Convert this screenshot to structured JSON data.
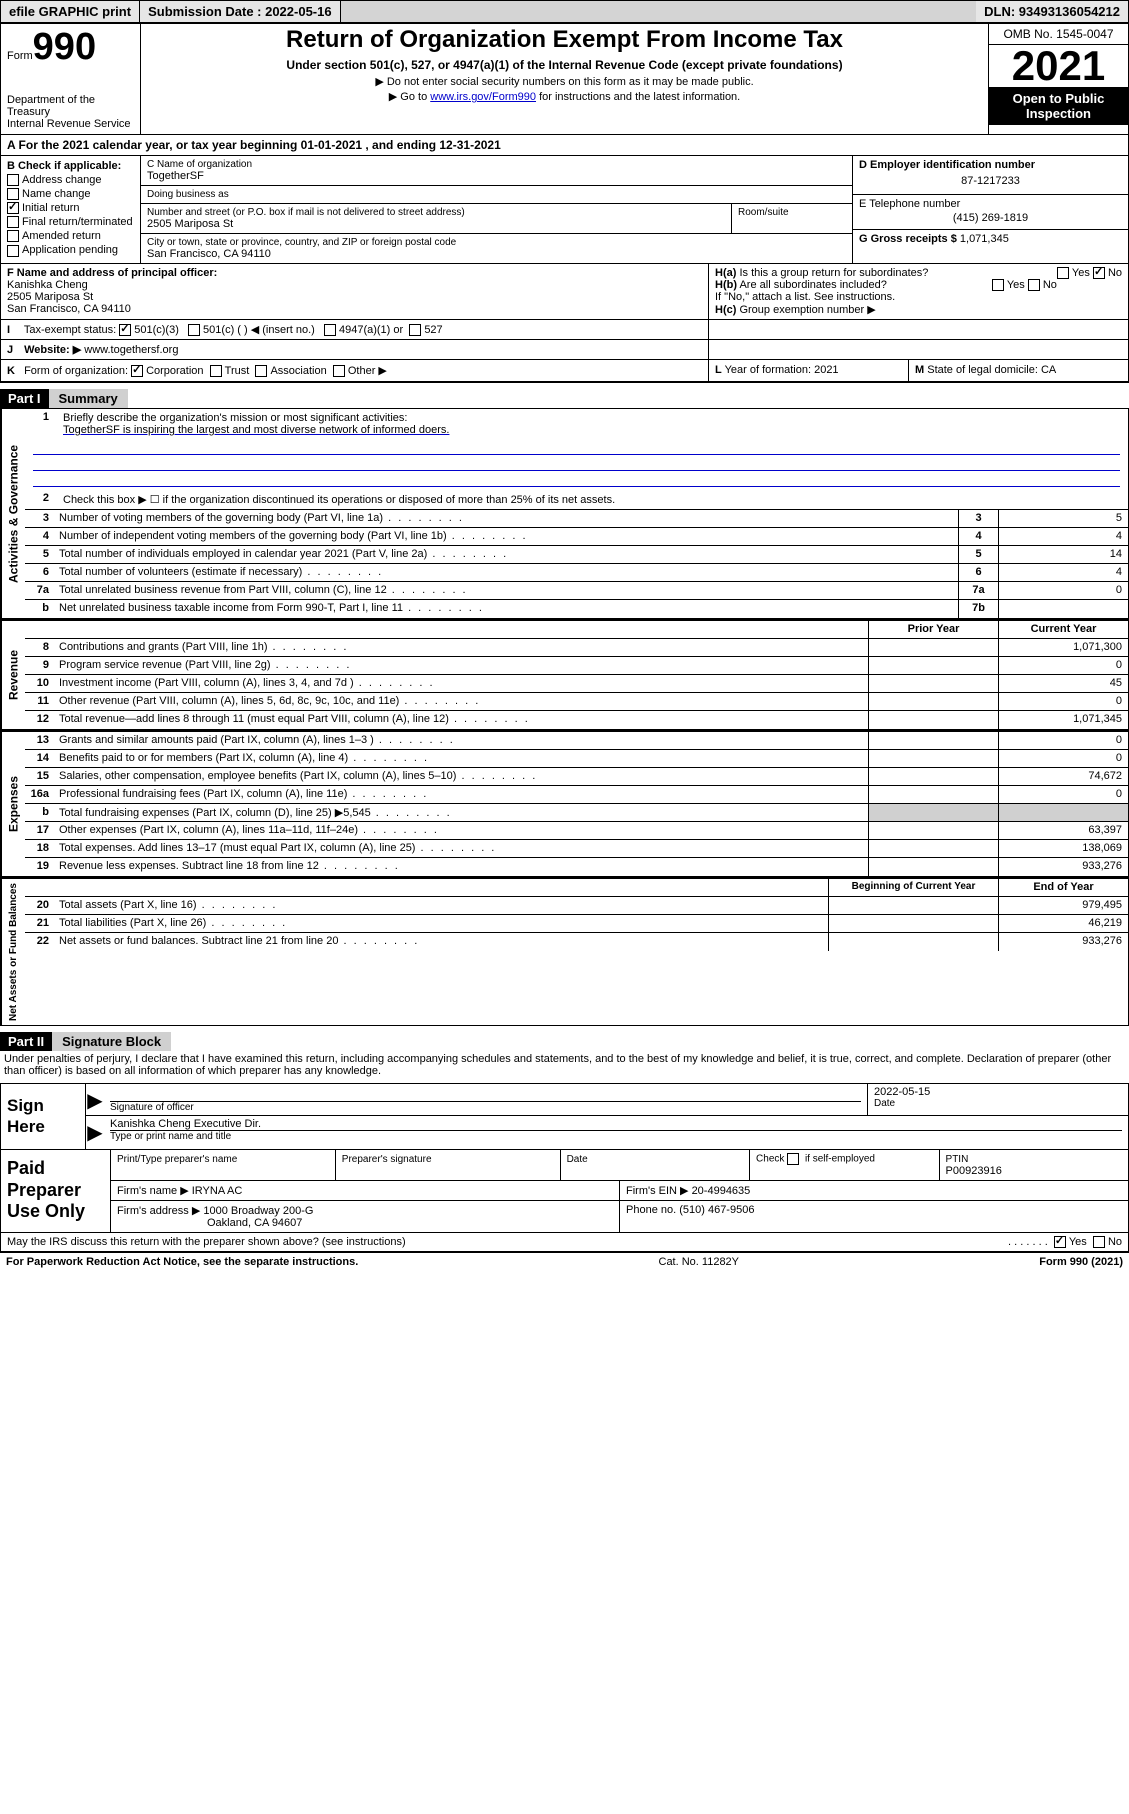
{
  "colors": {
    "bg": "#ffffff",
    "border": "#000000",
    "shade": "#d0d0d0",
    "link": "#0000cc",
    "topbar_bg": "#d4d4d4",
    "black": "#000000",
    "white": "#ffffff"
  },
  "topbar": {
    "btn1": "efile GRAPHIC print",
    "btn2": "Submission Date : 2022-05-16",
    "dln": "DLN: 93493136054212"
  },
  "header": {
    "form_word": "Form",
    "form_no": "990",
    "dept": "Department of the Treasury",
    "irs": "Internal Revenue Service",
    "title": "Return of Organization Exempt From Income Tax",
    "sub": "Under section 501(c), 527, or 4947(a)(1) of the Internal Revenue Code (except private foundations)",
    "note1": "▶ Do not enter social security numbers on this form as it may be made public.",
    "note2_pre": "▶ Go to ",
    "note2_link": "www.irs.gov/Form990",
    "note2_post": " for instructions and the latest information.",
    "omb": "OMB No. 1545-0047",
    "year": "2021",
    "open": "Open to Public Inspection"
  },
  "rowA": "A For the 2021 calendar year, or tax year beginning 01-01-2021   , and ending 12-31-2021",
  "B": {
    "label": "B Check if applicable:",
    "opts": [
      "Address change",
      "Name change",
      "Initial return",
      "Final return/terminated",
      "Amended return",
      "Application pending"
    ],
    "checked": [
      false,
      false,
      true,
      false,
      false,
      false
    ]
  },
  "C": {
    "name_cap": "C Name of organization",
    "name": "TogetherSF",
    "dba_cap": "Doing business as",
    "dba": "",
    "street_cap": "Number and street (or P.O. box if mail is not delivered to street address)",
    "street": "2505 Mariposa St",
    "suite_cap": "Room/suite",
    "suite": "",
    "city_cap": "City or town, state or province, country, and ZIP or foreign postal code",
    "city": "San Francisco, CA  94110"
  },
  "D": {
    "cap": "D Employer identification number",
    "val": "87-1217233"
  },
  "E": {
    "cap": "E Telephone number",
    "val": "(415) 269-1819"
  },
  "G": {
    "cap": "G Gross receipts $",
    "val": "1,071,345"
  },
  "F": {
    "cap": "F  Name and address of principal officer:",
    "name": "Kanishka Cheng",
    "street": "2505 Mariposa St",
    "city": "San Francisco, CA  94110"
  },
  "H": {
    "a_q": "Is this a group return for subordinates?",
    "a_yes": false,
    "a_no": true,
    "b_q": "Are all subordinates included?",
    "b_note": "If \"No,\" attach a list. See instructions.",
    "c_q": "Group exemption number ▶",
    "a_lbl": "H(a)",
    "b_lbl": "H(b)",
    "c_lbl": "H(c)"
  },
  "I": {
    "lbl": "I",
    "cap": "Tax-exempt status:",
    "c3": true,
    "c3_lbl": "501(c)(3)",
    "c_lbl": "501(c) (   ) ◀ (insert no.)",
    "a1_lbl": "4947(a)(1) or",
    "s527_lbl": "527"
  },
  "J": {
    "lbl": "J",
    "cap": "Website: ▶",
    "val": "www.togethersf.org"
  },
  "K": {
    "lbl": "K",
    "cap": "Form of organization:",
    "corp": true,
    "corp_lbl": "Corporation",
    "trust_lbl": "Trust",
    "assoc_lbl": "Association",
    "other_lbl": "Other ▶"
  },
  "L": {
    "lbl": "L",
    "cap": "Year of formation:",
    "val": "2021"
  },
  "M": {
    "lbl": "M",
    "cap": "State of legal domicile:",
    "val": "CA"
  },
  "part1": {
    "hdr": "Part I",
    "title": "Summary",
    "line1_cap": "Briefly describe the organization's mission or most significant activities:",
    "line1_val": "TogetherSF is inspiring the largest and most diverse network of informed doers.",
    "line2": "Check this box ▶ ☐  if the organization discontinued its operations or disposed of more than 25% of its net assets.",
    "vtab_gov": "Activities & Governance",
    "vtab_rev": "Revenue",
    "vtab_exp": "Expenses",
    "vtab_net": "Net Assets or Fund Balances",
    "hdr_prior": "Prior Year",
    "hdr_curr": "Current Year",
    "hdr_begin": "Beginning of Current Year",
    "hdr_end": "End of Year",
    "rows_gov": [
      {
        "n": "3",
        "d": "Number of voting members of the governing body (Part VI, line 1a)",
        "rn": "3",
        "v": "5"
      },
      {
        "n": "4",
        "d": "Number of independent voting members of the governing body (Part VI, line 1b)",
        "rn": "4",
        "v": "4"
      },
      {
        "n": "5",
        "d": "Total number of individuals employed in calendar year 2021 (Part V, line 2a)",
        "rn": "5",
        "v": "14"
      },
      {
        "n": "6",
        "d": "Total number of volunteers (estimate if necessary)",
        "rn": "6",
        "v": "4"
      },
      {
        "n": "7a",
        "d": "Total unrelated business revenue from Part VIII, column (C), line 12",
        "rn": "7a",
        "v": "0"
      },
      {
        "n": "b",
        "d": "Net unrelated business taxable income from Form 990-T, Part I, line 11",
        "rn": "7b",
        "v": ""
      }
    ],
    "rows_rev": [
      {
        "n": "8",
        "d": "Contributions and grants (Part VIII, line 1h)",
        "p": "",
        "c": "1,071,300"
      },
      {
        "n": "9",
        "d": "Program service revenue (Part VIII, line 2g)",
        "p": "",
        "c": "0"
      },
      {
        "n": "10",
        "d": "Investment income (Part VIII, column (A), lines 3, 4, and 7d )",
        "p": "",
        "c": "45"
      },
      {
        "n": "11",
        "d": "Other revenue (Part VIII, column (A), lines 5, 6d, 8c, 9c, 10c, and 11e)",
        "p": "",
        "c": "0"
      },
      {
        "n": "12",
        "d": "Total revenue—add lines 8 through 11 (must equal Part VIII, column (A), line 12)",
        "p": "",
        "c": "1,071,345"
      }
    ],
    "rows_exp": [
      {
        "n": "13",
        "d": "Grants and similar amounts paid (Part IX, column (A), lines 1–3 )",
        "p": "",
        "c": "0"
      },
      {
        "n": "14",
        "d": "Benefits paid to or for members (Part IX, column (A), line 4)",
        "p": "",
        "c": "0"
      },
      {
        "n": "15",
        "d": "Salaries, other compensation, employee benefits (Part IX, column (A), lines 5–10)",
        "p": "",
        "c": "74,672"
      },
      {
        "n": "16a",
        "d": "Professional fundraising fees (Part IX, column (A), line 11e)",
        "p": "",
        "c": "0"
      },
      {
        "n": "b",
        "d": "Total fundraising expenses (Part IX, column (D), line 25) ▶5,545",
        "p": "shade",
        "c": "shade"
      },
      {
        "n": "17",
        "d": "Other expenses (Part IX, column (A), lines 11a–11d, 11f–24e)",
        "p": "",
        "c": "63,397"
      },
      {
        "n": "18",
        "d": "Total expenses. Add lines 13–17 (must equal Part IX, column (A), line 25)",
        "p": "",
        "c": "138,069"
      },
      {
        "n": "19",
        "d": "Revenue less expenses. Subtract line 18 from line 12",
        "p": "",
        "c": "933,276"
      }
    ],
    "rows_net": [
      {
        "n": "20",
        "d": "Total assets (Part X, line 16)",
        "p": "",
        "c": "979,495"
      },
      {
        "n": "21",
        "d": "Total liabilities (Part X, line 26)",
        "p": "",
        "c": "46,219"
      },
      {
        "n": "22",
        "d": "Net assets or fund balances. Subtract line 21 from line 20",
        "p": "",
        "c": "933,276"
      }
    ]
  },
  "part2": {
    "hdr": "Part II",
    "title": "Signature Block",
    "decl": "Under penalties of perjury, I declare that I have examined this return, including accompanying schedules and statements, and to the best of my knowledge and belief, it is true, correct, and complete. Declaration of preparer (other than officer) is based on all information of which preparer has any knowledge."
  },
  "sign": {
    "here": "Sign Here",
    "sig_cap": "Signature of officer",
    "date_cap": "Date",
    "date": "2022-05-15",
    "name": "Kanishka Cheng  Executive Dir.",
    "name_cap": "Type or print name and title"
  },
  "prep": {
    "label": "Paid Preparer Use Only",
    "h1": "Print/Type preparer's name",
    "h2": "Preparer's signature",
    "h3": "Date",
    "h4_pre": "Check ",
    "h4_chk": false,
    "h4_post": " if self-employed",
    "h5": "PTIN",
    "ptin": "P00923916",
    "firm_lbl": "Firm's name   ▶",
    "firm": "IRYNA AC",
    "ein_lbl": "Firm's EIN ▶",
    "ein": "20-4994635",
    "addr_lbl": "Firm's address ▶",
    "addr1": "1000 Broadway 200-G",
    "addr2": "Oakland, CA  94607",
    "phone_lbl": "Phone no.",
    "phone": "(510) 467-9506"
  },
  "discuss": {
    "q": "May the IRS discuss this return with the preparer shown above? (see instructions)",
    "yes": true,
    "no": false,
    "yes_lbl": "Yes",
    "no_lbl": "No"
  },
  "footer": {
    "left": "For Paperwork Reduction Act Notice, see the separate instructions.",
    "mid": "Cat. No. 11282Y",
    "right": "Form 990 (2021)"
  }
}
